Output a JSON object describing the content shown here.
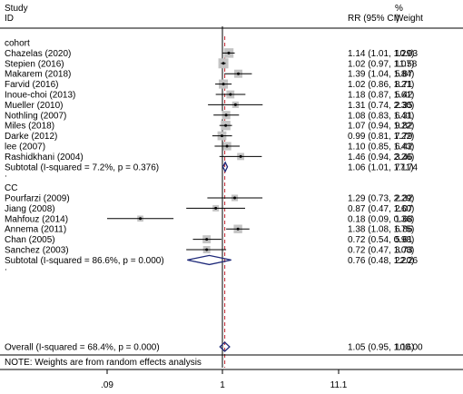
{
  "chart_data": {
    "type": "forest",
    "x_scale": "log",
    "x_ticks": [
      ".09",
      "1",
      "11.1"
    ],
    "header": {
      "study_label": "Study",
      "id_label": "ID",
      "effect_label": "RR (95% CI)",
      "pct_label": "%",
      "weight_label": "Weight"
    },
    "groups": [
      {
        "name": "cohort",
        "studies": [
          {
            "label": "Chazelas (2020)",
            "rr": 1.14,
            "lo": 1.01,
            "hi": 1.29,
            "ci_text": "1.14 (1.01, 1.29)",
            "weight": "10.03"
          },
          {
            "label": "Stepien (2016)",
            "rr": 1.02,
            "lo": 0.97,
            "hi": 1.07,
            "ci_text": "1.02 (0.97, 1.07)",
            "weight": "11.58"
          },
          {
            "label": "Makarem (2018)",
            "rr": 1.39,
            "lo": 1.04,
            "hi": 1.84,
            "ci_text": "1.39 (1.04, 1.84)",
            "weight": "5.87"
          },
          {
            "label": "Farvid (2016)",
            "rr": 1.02,
            "lo": 0.86,
            "hi": 1.21,
            "ci_text": "1.02 (0.86, 1.21)",
            "weight": "8.71"
          },
          {
            "label": "Inoue-choi (2013)",
            "rr": 1.18,
            "lo": 0.87,
            "hi": 1.61,
            "ci_text": "1.18 (0.87, 1.61)",
            "weight": "5.42"
          },
          {
            "label": "Mueller (2010)",
            "rr": 1.31,
            "lo": 0.74,
            "hi": 2.3,
            "ci_text": "1.31 (0.74, 2.30)",
            "weight": "2.35"
          },
          {
            "label": "Nothling (2007)",
            "rr": 1.08,
            "lo": 0.83,
            "hi": 1.41,
            "ci_text": "1.08 (0.83, 1.41)",
            "weight": "6.31"
          },
          {
            "label": "Miles (2018)",
            "rr": 1.07,
            "lo": 0.94,
            "hi": 1.22,
            "ci_text": "1.07 (0.94, 1.22)",
            "weight": "9.82"
          },
          {
            "label": "Darke (2012)",
            "rr": 0.99,
            "lo": 0.81,
            "hi": 1.22,
            "ci_text": "0.99 (0.81, 1.22)",
            "weight": "7.79"
          },
          {
            "label": "lee (2007)",
            "rr": 1.1,
            "lo": 0.85,
            "hi": 1.43,
            "ci_text": "1.10 (0.85, 1.43)",
            "weight": "6.42"
          },
          {
            "label": "Rashidkhani (2004)",
            "rr": 1.46,
            "lo": 0.94,
            "hi": 2.26,
            "ci_text": "1.46 (0.94, 2.26)",
            "weight": "3.46"
          }
        ],
        "subtotal": {
          "label": "Subtotal  (I-squared = 7.2%, p = 0.376)",
          "rr": 1.06,
          "lo": 1.01,
          "hi": 1.11,
          "ci_text": "1.06 (1.01, 1.11)",
          "weight": "77.74"
        }
      },
      {
        "name": "CC",
        "studies": [
          {
            "label": "Pourfarzi (2009)",
            "rr": 1.29,
            "lo": 0.73,
            "hi": 2.29,
            "ci_text": "1.29 (0.73, 2.29)",
            "weight": "2.32"
          },
          {
            "label": "Jiang (2008)",
            "rr": 0.87,
            "lo": 0.47,
            "hi": 1.6,
            "ci_text": "0.87 (0.47, 1.60)",
            "weight": "2.07"
          },
          {
            "label": "Mahfouz (2014)",
            "rr": 0.18,
            "lo": 0.09,
            "hi": 0.36,
            "ci_text": "0.18 (0.09, 0.36)",
            "weight": "1.68"
          },
          {
            "label": "Annema (2011)",
            "rr": 1.38,
            "lo": 1.08,
            "hi": 1.75,
            "ci_text": "1.38 (1.08, 1.75)",
            "weight": "6.86"
          },
          {
            "label": "Chan (2005)",
            "rr": 0.72,
            "lo": 0.54,
            "hi": 0.98,
            "ci_text": "0.72 (0.54, 0.98)",
            "weight": "5.61"
          },
          {
            "label": "Sanchez (2003)",
            "rr": 0.72,
            "lo": 0.47,
            "hi": 1.08,
            "ci_text": "0.72 (0.47, 1.08)",
            "weight": "3.73"
          }
        ],
        "subtotal": {
          "label": "Subtotal  (I-squared = 86.6%, p = 0.000)",
          "rr": 0.76,
          "lo": 0.48,
          "hi": 1.2,
          "ci_text": "0.76 (0.48, 1.20)",
          "weight": "22.26"
        }
      }
    ],
    "overall": {
      "label": "Overall  (I-squared = 68.4%, p = 0.000)",
      "rr": 1.05,
      "lo": 0.95,
      "hi": 1.16,
      "ci_text": "1.05 (0.95, 1.16)",
      "weight": "100.00"
    },
    "note": "NOTE: Weights are from random effects analysis",
    "separator": "."
  }
}
